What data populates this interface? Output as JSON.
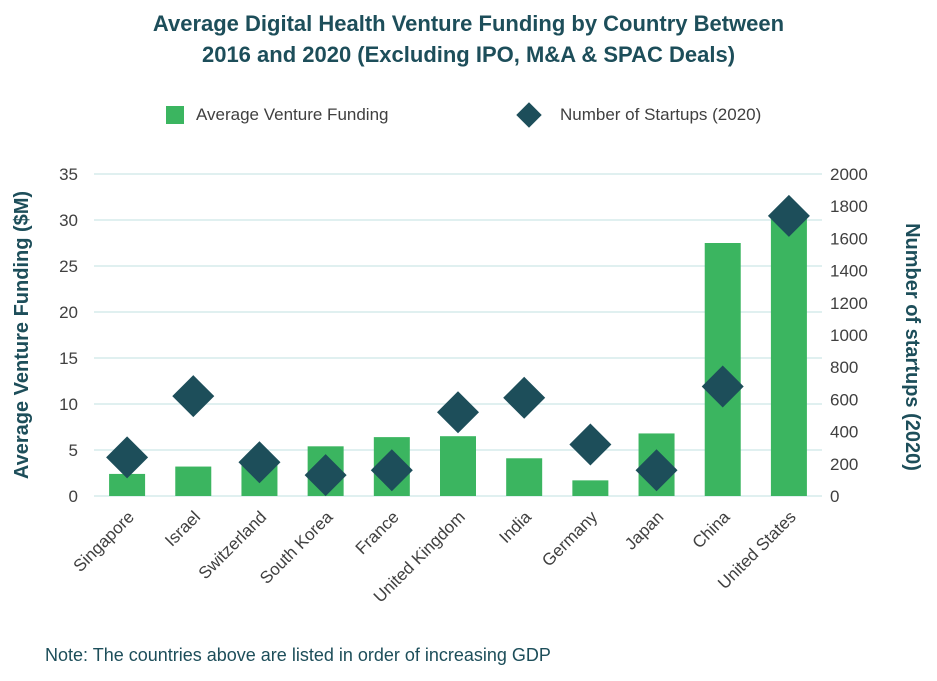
{
  "title_line1": "Average Digital Health Venture Funding by Country Between",
  "title_line2": "2016 and 2020 (Excluding IPO, M&A & SPAC Deals)",
  "footnote": "Note: The countries above are listed in order of increasing GDP",
  "colors": {
    "bar": "#3bb560",
    "diamond": "#1d4e5a",
    "title": "#1d4e5a",
    "grid": "#d6ecec",
    "text": "#404040"
  },
  "chart_data": {
    "type": "bar",
    "categories": [
      "Singapore",
      "Israel",
      "Switzerland",
      "South Korea",
      "France",
      "United Kingdom",
      "India",
      "Germany",
      "Japan",
      "China",
      "United States"
    ],
    "series": [
      {
        "name": "Average Venture Funding",
        "type": "bar",
        "axis": "left",
        "values": [
          2.4,
          3.2,
          3.4,
          5.4,
          6.4,
          6.5,
          4.1,
          1.7,
          6.8,
          27.5,
          30.5
        ]
      },
      {
        "name": "Number of Startups (2020)",
        "type": "scatter",
        "marker": "diamond",
        "axis": "right",
        "values": [
          240,
          620,
          210,
          130,
          160,
          520,
          610,
          320,
          160,
          680,
          1740
        ]
      }
    ],
    "ylabel": "Average Venture Funding ($M)",
    "y2label": "Number of startups (2020)",
    "ylim": [
      0,
      35
    ],
    "y2lim": [
      0,
      2000
    ],
    "yticks": [
      0,
      5,
      10,
      15,
      20,
      25,
      30,
      35
    ],
    "y2ticks": [
      0,
      200,
      400,
      600,
      800,
      1000,
      1200,
      1400,
      1600,
      1800,
      2000
    ],
    "grid": true,
    "legend_position": "top"
  }
}
